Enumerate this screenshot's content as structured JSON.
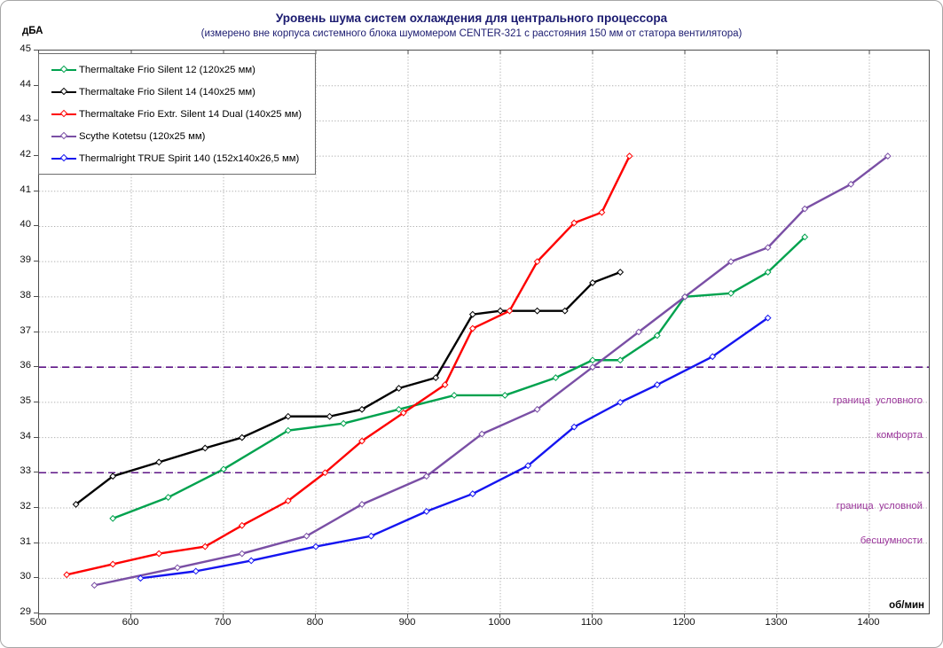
{
  "title": "Уровень шума систем охлаждения для центрального процессора",
  "subtitle": "(измерено вне корпуса системного блока шумомером CENTER-321 с расстояния 150 мм от статора вентилятора)",
  "title_color": "#1b1b70",
  "chart_data": {
    "type": "line",
    "title": "Уровень шума систем охлаждения для центрального процессора",
    "subtitle": "(измерено вне корпуса системного блока шумомером CENTER-321 с расстояния 150 мм от статора вентилятора)",
    "ylabel": "дБА",
    "xlabel": "об/мин",
    "xlim": [
      500,
      1465
    ],
    "ylim": [
      29,
      45
    ],
    "x_ticks": [
      500,
      600,
      700,
      800,
      900,
      1000,
      1100,
      1200,
      1300,
      1400
    ],
    "y_ticks": [
      29,
      30,
      31,
      32,
      33,
      34,
      35,
      36,
      37,
      38,
      39,
      40,
      41,
      42,
      43,
      44,
      45
    ],
    "grid": true,
    "grid_color": "#b0b0b0",
    "legend_position": "top-left",
    "series": [
      {
        "name": "Thermaltake Frio Silent 12 (120x25 мм)",
        "color": "#00a24e",
        "points": [
          [
            580,
            31.7
          ],
          [
            640,
            32.3
          ],
          [
            700,
            33.1
          ],
          [
            770,
            34.2
          ],
          [
            830,
            34.4
          ],
          [
            890,
            34.8
          ],
          [
            950,
            35.2
          ],
          [
            1005,
            35.2
          ],
          [
            1060,
            35.7
          ],
          [
            1100,
            36.2
          ],
          [
            1130,
            36.2
          ],
          [
            1170,
            36.9
          ],
          [
            1200,
            38.0
          ],
          [
            1250,
            38.1
          ],
          [
            1290,
            38.7
          ],
          [
            1330,
            39.7
          ]
        ]
      },
      {
        "name": "Thermaltake Frio Silent 14 (140x25 мм)",
        "color": "#000000",
        "points": [
          [
            540,
            32.1
          ],
          [
            580,
            32.9
          ],
          [
            630,
            33.3
          ],
          [
            680,
            33.7
          ],
          [
            720,
            34.0
          ],
          [
            770,
            34.6
          ],
          [
            815,
            34.6
          ],
          [
            850,
            34.8
          ],
          [
            890,
            35.4
          ],
          [
            930,
            35.7
          ],
          [
            970,
            37.5
          ],
          [
            1000,
            37.6
          ],
          [
            1040,
            37.6
          ],
          [
            1070,
            37.6
          ],
          [
            1100,
            38.4
          ],
          [
            1130,
            38.7
          ]
        ]
      },
      {
        "name": "Thermaltake Frio Extr. Silent 14 Dual (140x25 мм)",
        "color": "#fe0000",
        "points": [
          [
            530,
            30.1
          ],
          [
            580,
            30.4
          ],
          [
            630,
            30.7
          ],
          [
            680,
            30.9
          ],
          [
            720,
            31.5
          ],
          [
            770,
            32.2
          ],
          [
            810,
            33.0
          ],
          [
            850,
            33.9
          ],
          [
            895,
            34.7
          ],
          [
            940,
            35.5
          ],
          [
            970,
            37.1
          ],
          [
            1010,
            37.6
          ],
          [
            1040,
            39.0
          ],
          [
            1080,
            40.1
          ],
          [
            1110,
            40.4
          ],
          [
            1140,
            42.0
          ]
        ]
      },
      {
        "name": "Scythe Kotetsu (120x25 мм)",
        "color": "#7a4fa5",
        "points": [
          [
            560,
            29.8
          ],
          [
            650,
            30.3
          ],
          [
            720,
            30.7
          ],
          [
            790,
            31.2
          ],
          [
            850,
            32.1
          ],
          [
            920,
            32.9
          ],
          [
            980,
            34.1
          ],
          [
            1040,
            34.8
          ],
          [
            1100,
            36.0
          ],
          [
            1150,
            37.0
          ],
          [
            1200,
            38.0
          ],
          [
            1250,
            39.0
          ],
          [
            1290,
            39.4
          ],
          [
            1330,
            40.5
          ],
          [
            1380,
            41.2
          ],
          [
            1420,
            42.0
          ]
        ]
      },
      {
        "name": "Thermalright TRUE Spirit 140 (152x140x26,5 мм)",
        "color": "#1515f0",
        "points": [
          [
            610,
            30.0
          ],
          [
            670,
            30.2
          ],
          [
            730,
            30.5
          ],
          [
            800,
            30.9
          ],
          [
            860,
            31.2
          ],
          [
            920,
            31.9
          ],
          [
            970,
            32.4
          ],
          [
            1030,
            33.2
          ],
          [
            1080,
            34.3
          ],
          [
            1130,
            35.0
          ],
          [
            1170,
            35.5
          ],
          [
            1230,
            36.3
          ],
          [
            1290,
            37.4
          ]
        ]
      }
    ],
    "reference_lines": [
      {
        "value": 36,
        "label_lines": [
          "граница  условного",
          "комфорта"
        ]
      },
      {
        "value": 33,
        "label_lines": [
          "граница  условной",
          "бесшумности"
        ]
      }
    ],
    "reference_line_color": "#5e1587",
    "reference_label_color": "#993399"
  }
}
